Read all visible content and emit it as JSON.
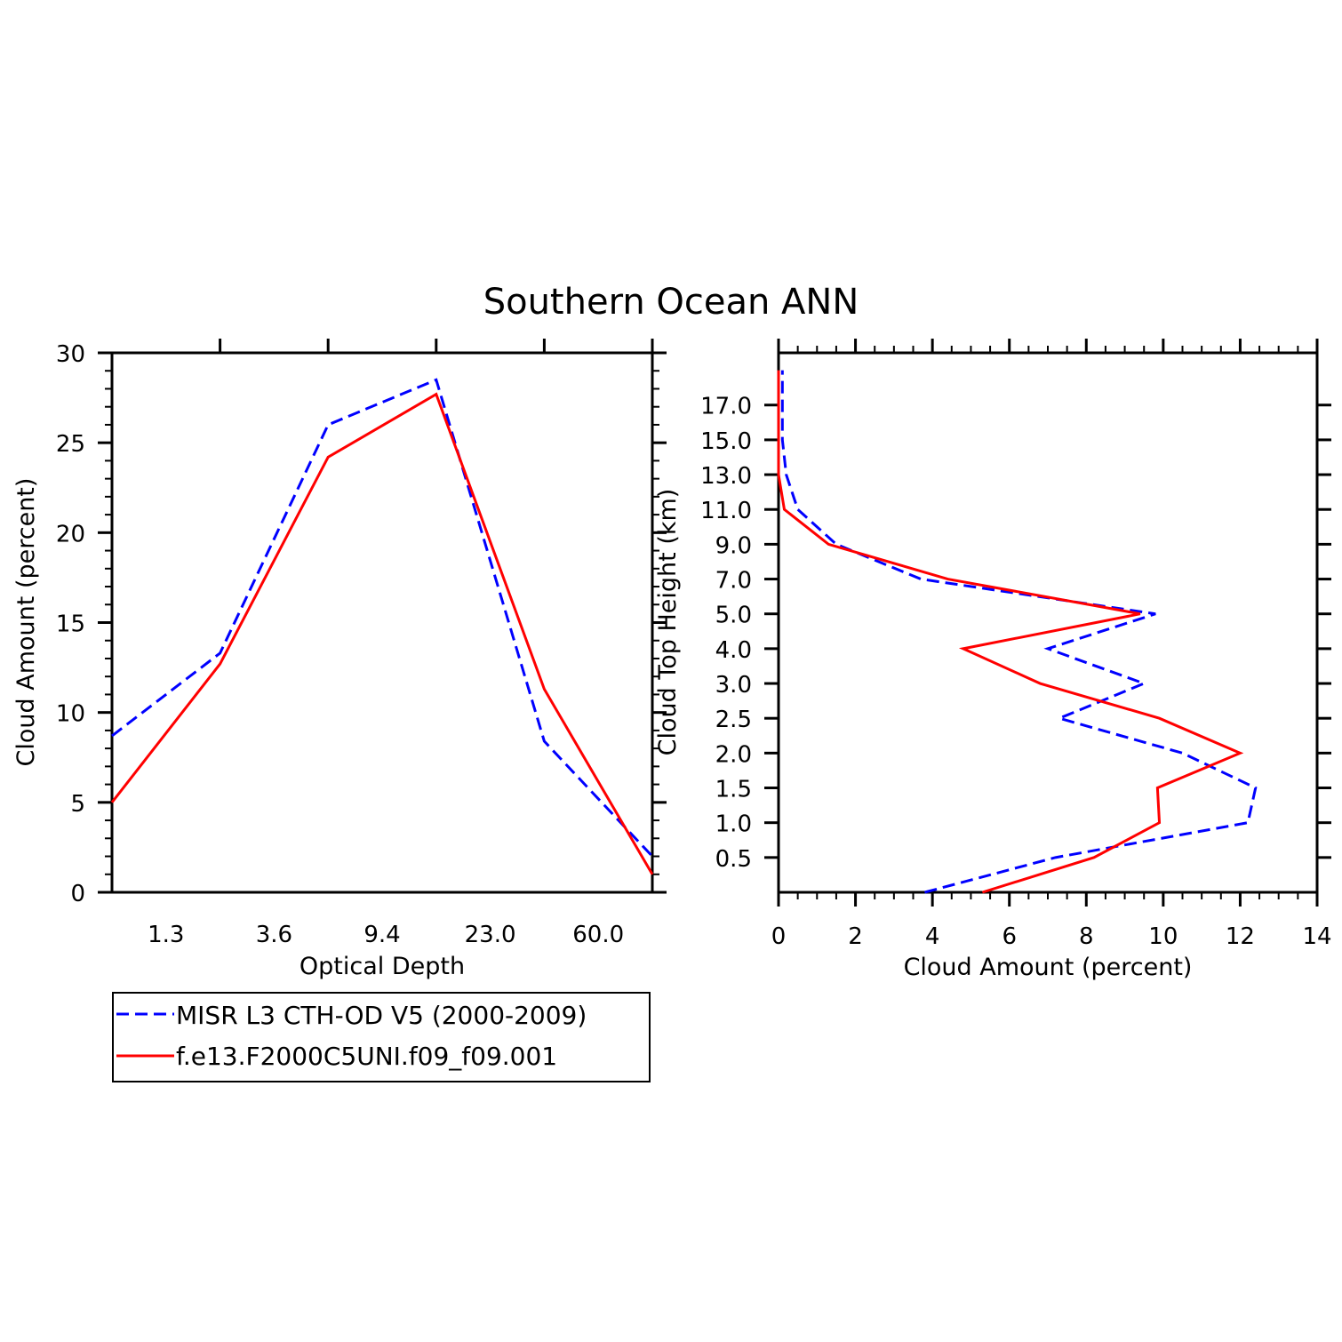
{
  "title": "Southern Ocean ANN",
  "legend": {
    "entries": [
      {
        "label": "MISR L3 CTH-OD V5 (2000-2009)",
        "color": "#0000ff",
        "dash": true
      },
      {
        "label": "f.e13.F2000C5UNI.f09_f09.001",
        "color": "#ff0000",
        "dash": false
      }
    ]
  },
  "chart_data": [
    {
      "type": "line",
      "xlabel": "Optical Depth",
      "ylabel": "Cloud Amount (percent)",
      "x_tick_labels": [
        "1.3",
        "3.6",
        "9.4",
        "23.0",
        "60.0"
      ],
      "ylim": [
        0,
        30
      ],
      "y_ticks": [
        0,
        5,
        10,
        15,
        20,
        25,
        30
      ],
      "x_range": [
        0,
        5
      ],
      "x": [
        0,
        1,
        2,
        3,
        4,
        5
      ],
      "series": [
        {
          "name": "MISR L3 CTH-OD V5 (2000-2009)",
          "color": "#0000ff",
          "dash": true,
          "values": [
            8.7,
            13.3,
            26.0,
            28.5,
            8.4,
            2.0
          ]
        },
        {
          "name": "f.e13.F2000C5UNI.f09_f09.001",
          "color": "#ff0000",
          "dash": false,
          "values": [
            5.0,
            12.7,
            24.2,
            27.7,
            11.3,
            1.0
          ]
        }
      ]
    },
    {
      "type": "line",
      "xlabel": "Cloud Amount (percent)",
      "ylabel": "Cloud Top Height (km)",
      "xlim": [
        0,
        14
      ],
      "x_ticks": [
        0,
        2,
        4,
        6,
        8,
        10,
        12,
        14
      ],
      "y_tick_labels": [
        "0.5",
        "1.0",
        "1.5",
        "2.0",
        "2.5",
        "3.0",
        "4.0",
        "5.0",
        "7.0",
        "9.0",
        "11.0",
        "13.0",
        "15.0",
        "17.0"
      ],
      "heights_km": [
        "0",
        "0.5",
        "1.0",
        "1.5",
        "2.0",
        "2.5",
        "3.0",
        "4.0",
        "5.0",
        "7.0",
        "9.0",
        "11.0",
        "13.0",
        "15.0",
        "17.0",
        "18"
      ],
      "series": [
        {
          "name": "MISR L3 CTH-OD V5 (2000-2009)",
          "color": "#0000ff",
          "dash": true,
          "values": [
            3.8,
            7.2,
            12.2,
            12.4,
            10.5,
            7.3,
            9.5,
            7.0,
            9.8,
            3.7,
            1.5,
            0.5,
            0.2,
            0.1,
            0.1,
            0.1
          ]
        },
        {
          "name": "f.e13.F2000C5UNI.f09_f09.001",
          "color": "#ff0000",
          "dash": false,
          "values": [
            5.3,
            8.2,
            9.9,
            9.85,
            12.0,
            9.9,
            6.8,
            4.8,
            9.4,
            4.4,
            1.3,
            0.15,
            0.0,
            0.0,
            0.0,
            0.0
          ]
        }
      ]
    }
  ]
}
